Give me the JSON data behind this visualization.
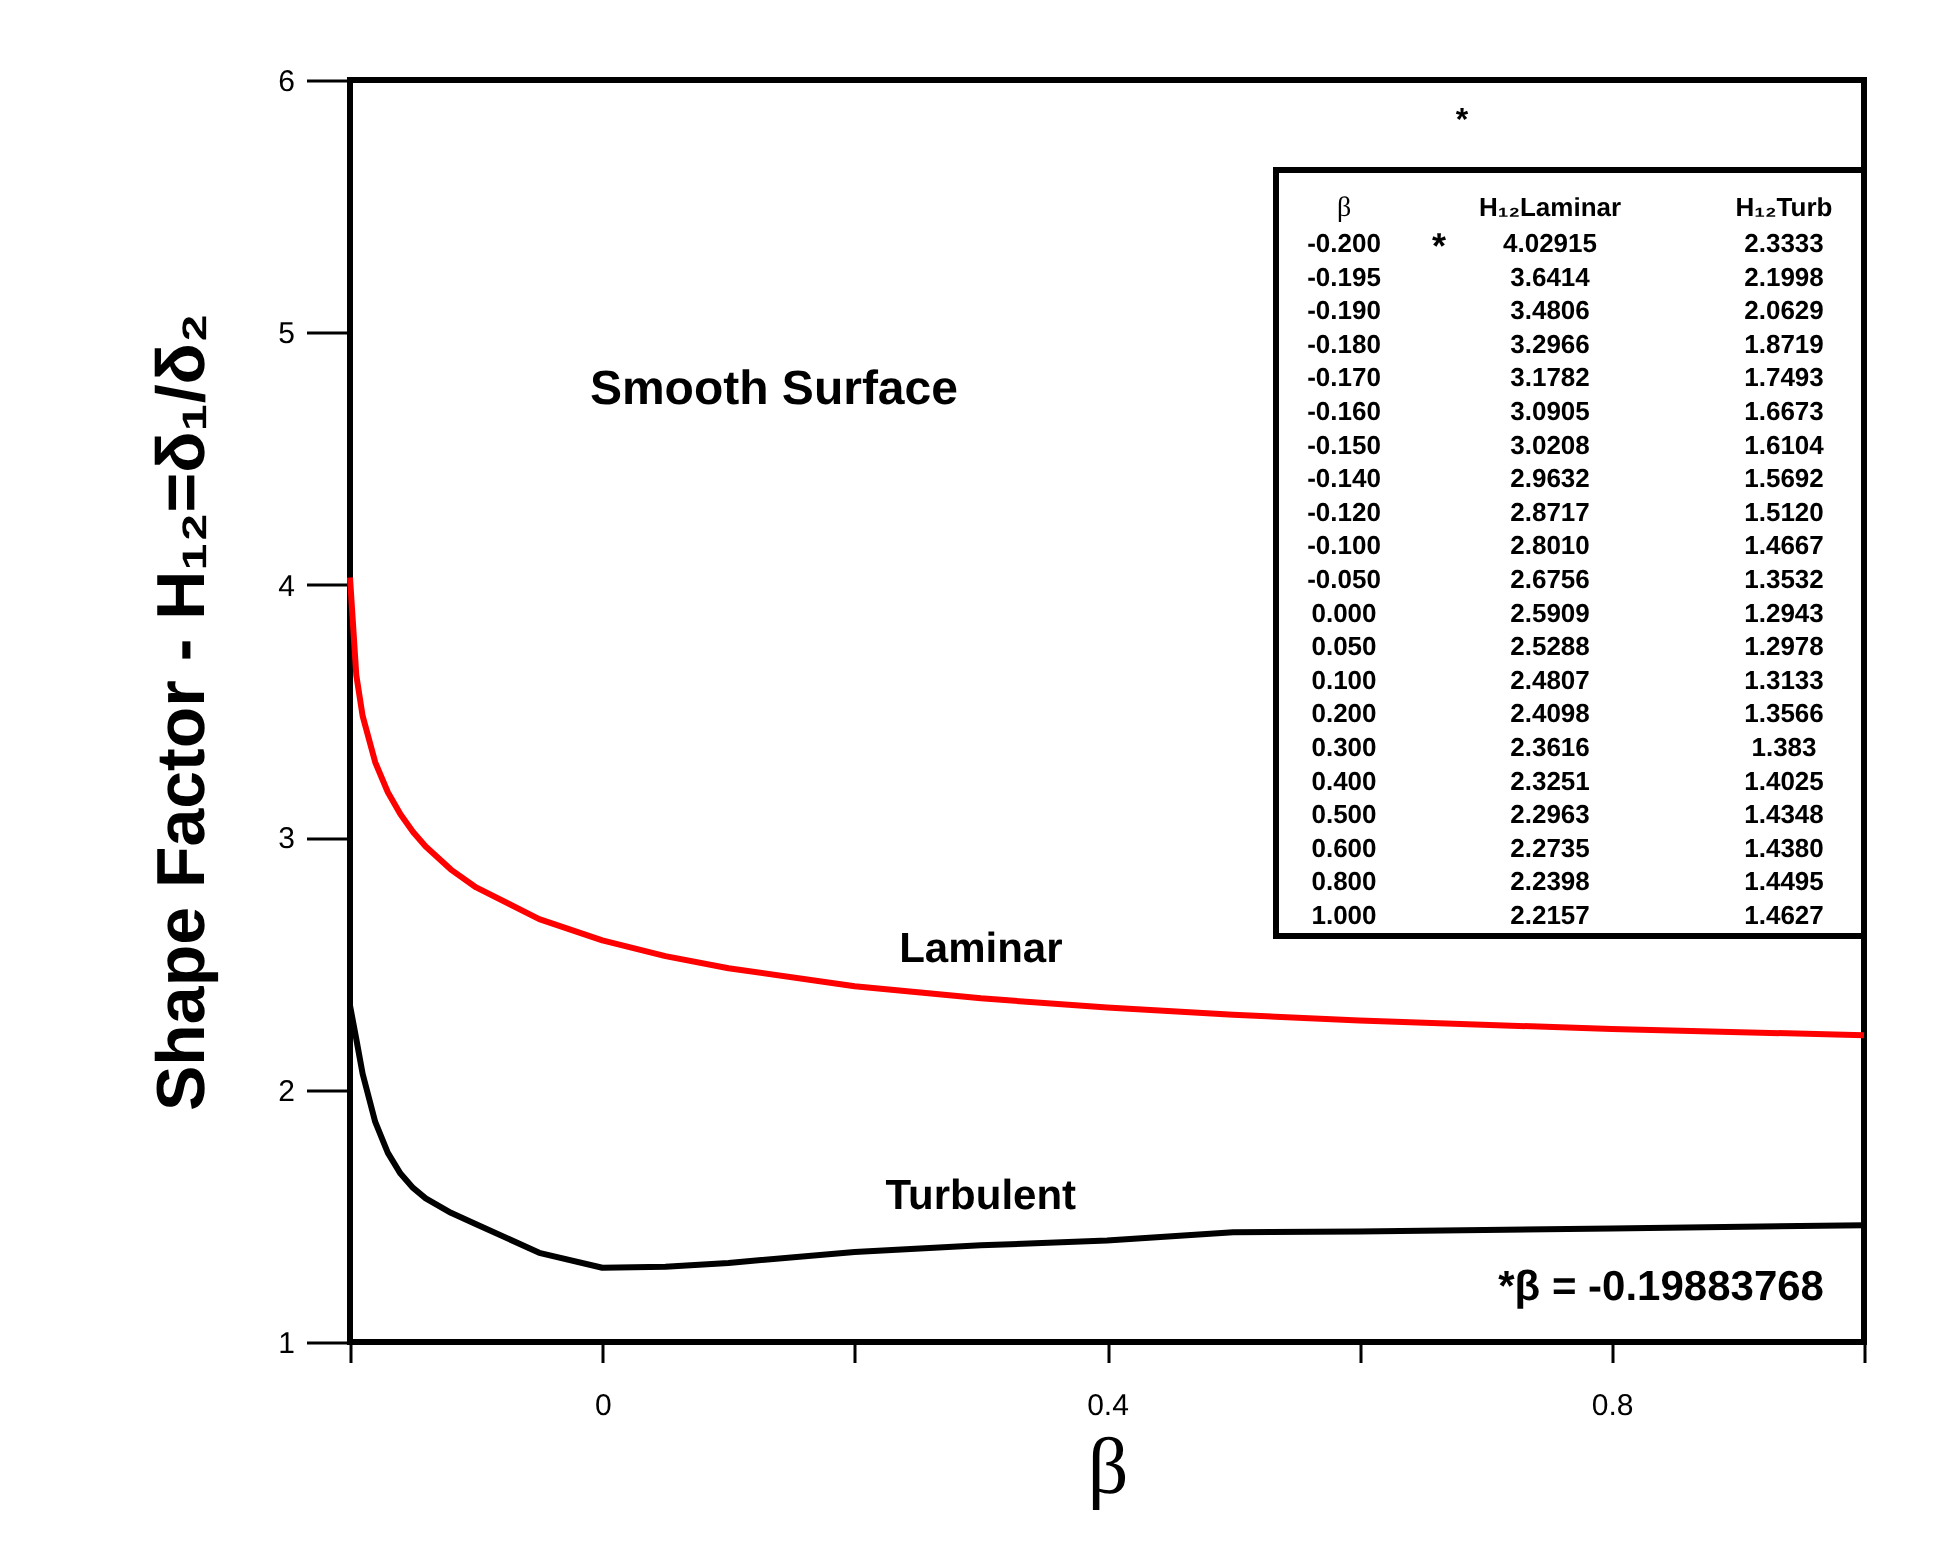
{
  "chart_data": {
    "type": "line",
    "xlabel": "β",
    "ylabel": "Shape Factor - H₁₂=δ₁/δ₂",
    "x": [
      -0.2,
      -0.195,
      -0.19,
      -0.18,
      -0.17,
      -0.16,
      -0.15,
      -0.14,
      -0.12,
      -0.1,
      -0.05,
      0.0,
      0.05,
      0.1,
      0.2,
      0.3,
      0.4,
      0.5,
      0.6,
      0.8,
      1.0
    ],
    "series": [
      {
        "name": "Laminar",
        "color": "#ff0000",
        "values": [
          4.02915,
          3.6414,
          3.4806,
          3.2966,
          3.1782,
          3.0905,
          3.0208,
          2.9632,
          2.8717,
          2.801,
          2.6756,
          2.5909,
          2.5288,
          2.4807,
          2.4098,
          2.3616,
          2.3251,
          2.2963,
          2.2735,
          2.2398,
          2.2157
        ]
      },
      {
        "name": "Turbulent",
        "color": "#000000",
        "values": [
          2.3333,
          2.1998,
          2.0629,
          1.8719,
          1.7493,
          1.6673,
          1.6104,
          1.5692,
          1.512,
          1.4667,
          1.3532,
          1.2943,
          1.2978,
          1.3133,
          1.3566,
          1.383,
          1.4025,
          1.4348,
          1.438,
          1.4495,
          1.4627
        ]
      }
    ],
    "xlim": [
      -0.2,
      1.0
    ],
    "xticks": [
      {
        "value": -0.2,
        "label": null
      },
      0,
      {
        "value": 0.2,
        "label": null
      },
      0.4,
      {
        "value": 0.6,
        "label": null
      },
      0.8,
      {
        "value": 1.0,
        "label": null
      }
    ],
    "ylim": [
      1,
      6
    ],
    "yticks": [
      1,
      2,
      3,
      4,
      5,
      6
    ],
    "annotations": [
      "Smooth Surface",
      "*β = -0.19883768",
      "*",
      "β",
      "H₁₂Laminar",
      "H₁₂Turb",
      "*",
      "-0.200",
      "-0.195",
      "-0.190",
      "-0.180",
      "-0.170",
      "-0.160",
      "-0.150",
      "-0.140",
      "-0.120",
      "-0.100",
      "-0.050",
      "0.000",
      "0.050",
      "0.100",
      "0.200",
      "0.300",
      "0.400",
      "0.500",
      "0.600",
      "0.800",
      "1.000",
      "4.02915",
      "3.6414",
      "3.4806",
      "3.2966",
      "3.1782",
      "3.0905",
      "3.0208",
      "2.9632",
      "2.8717",
      "2.8010",
      "2.6756",
      "2.5909",
      "2.5288",
      "2.4807",
      "2.4098",
      "2.3616",
      "2.3251",
      "2.2963",
      "2.2735",
      "2.2398",
      "2.2157",
      "2.3333",
      "2.1998",
      "2.0629",
      "1.8719",
      "1.7493",
      "1.6673",
      "1.6104",
      "1.5692",
      "1.5120",
      "1.4667",
      "1.3532",
      "1.2943",
      "1.2978",
      "1.3133",
      "1.3566",
      "1.383",
      "1.4025",
      "1.4348",
      "1.4380",
      "1.4495",
      "1.4627"
    ],
    "grid": false,
    "line_style": "solid",
    "marker": "none"
  }
}
